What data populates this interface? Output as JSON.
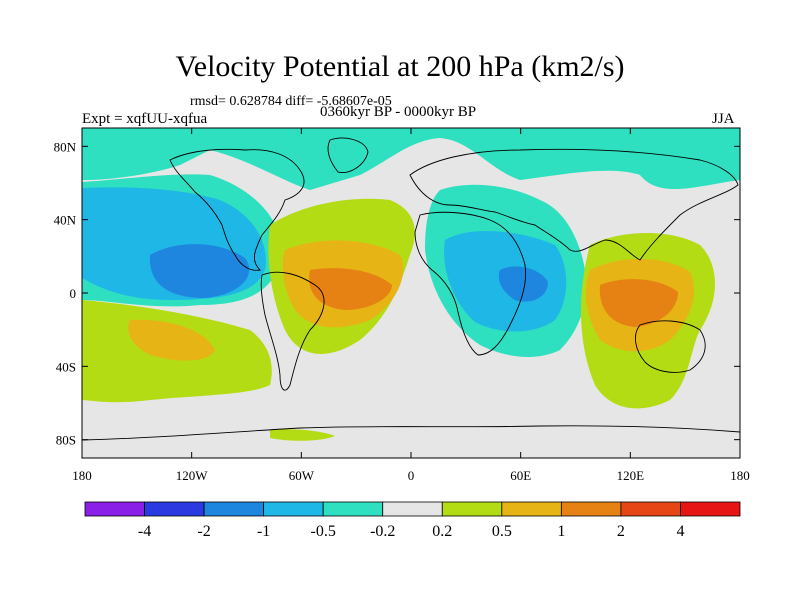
{
  "figure": {
    "title": "Velocity Potential at 200 hPa (km2/s)",
    "stats": "rmsd= 0.628784 diff= -5.68607e-05",
    "experiment": "Expt = xqfUU-xqfua",
    "period": "0360kyr BP - 0000kyr BP",
    "season": "JJA"
  },
  "axes": {
    "lat_labels": [
      "80N",
      "40N",
      "0",
      "40S",
      "80S"
    ],
    "lat_values": [
      80,
      40,
      0,
      -40,
      -80
    ],
    "lon_labels": [
      "180",
      "120W",
      "60W",
      "0",
      "60E",
      "120E",
      "180"
    ],
    "lon_values": [
      -180,
      -120,
      -60,
      0,
      60,
      120,
      180
    ],
    "lat_range": [
      -90,
      90
    ],
    "lon_range": [
      -180,
      180
    ]
  },
  "colorbar": {
    "levels": [
      "-4",
      "-2",
      "-1",
      "-0.5",
      "-0.2",
      "0.2",
      "0.5",
      "1",
      "2",
      "4"
    ],
    "colors": [
      "#8a1fe8",
      "#2a3ae0",
      "#1f86e0",
      "#1fb8e6",
      "#2ee0c0",
      "#e6e6e6",
      "#b4dc14",
      "#e6b414",
      "#e68214",
      "#e64614",
      "#e61414"
    ]
  }
}
